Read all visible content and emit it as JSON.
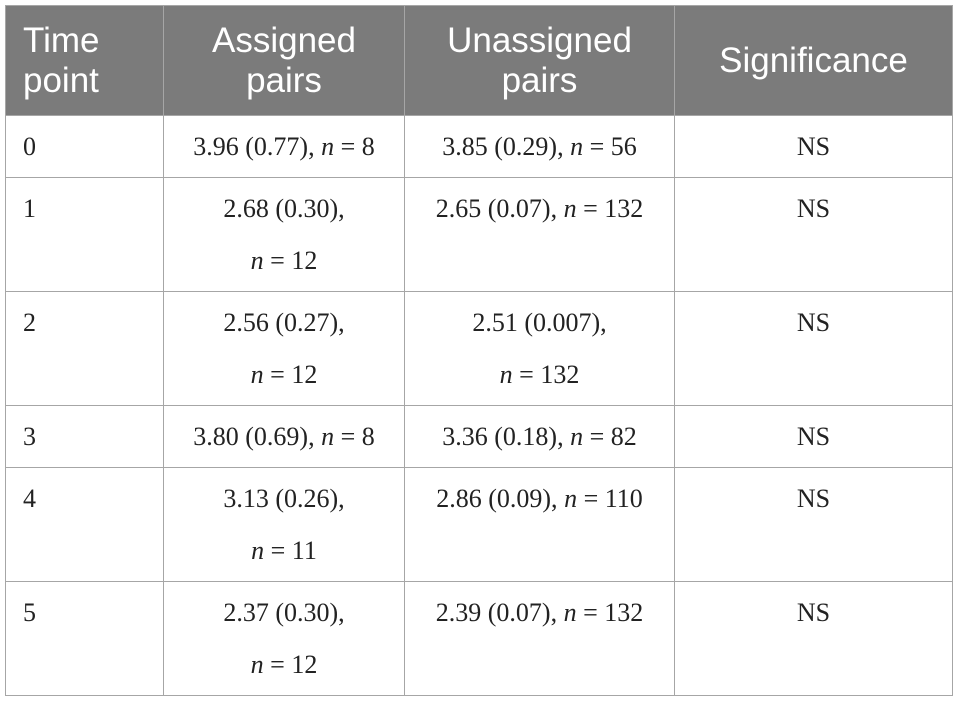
{
  "headers": {
    "time_point": [
      "Time",
      "point"
    ],
    "assigned": [
      "Assigned",
      "pairs"
    ],
    "unassigned": [
      "Unassigned",
      "pairs"
    ],
    "significance": "Significance"
  },
  "rows": [
    {
      "time_point": "0",
      "assigned": {
        "value": "3.96 (0.77),",
        "n_label": "n",
        "n_eq": " = 8"
      },
      "unassigned": {
        "value": "3.85 (0.29),",
        "n_label": "n",
        "n_eq": " = 56"
      },
      "significance": "NS"
    },
    {
      "time_point": "1",
      "assigned": {
        "value": "2.68 (0.30),",
        "n_label": "n",
        "n_eq": " = 12"
      },
      "unassigned": {
        "value": "2.65 (0.07),",
        "n_label": "n",
        "n_eq": " = 132"
      },
      "significance": "NS"
    },
    {
      "time_point": "2",
      "assigned": {
        "value": "2.56 (0.27),",
        "n_label": "n",
        "n_eq": " = 12"
      },
      "unassigned": {
        "value": "2.51 (0.007),",
        "n_label": "n",
        "n_eq": " = 132"
      },
      "significance": "NS"
    },
    {
      "time_point": "3",
      "assigned": {
        "value": "3.80 (0.69),",
        "n_label": "n",
        "n_eq": " = 8"
      },
      "unassigned": {
        "value": "3.36 (0.18),",
        "n_label": "n",
        "n_eq": " = 82"
      },
      "significance": "NS"
    },
    {
      "time_point": "4",
      "assigned": {
        "value": "3.13 (0.26),",
        "n_label": "n",
        "n_eq": " = 11"
      },
      "unassigned": {
        "value": "2.86 (0.09),",
        "n_label": "n",
        "n_eq": " = 110"
      },
      "significance": "NS"
    },
    {
      "time_point": "5",
      "assigned": {
        "value": "2.37 (0.30),",
        "n_label": "n",
        "n_eq": " = 12"
      },
      "unassigned": {
        "value": "2.39 (0.07),",
        "n_label": "n",
        "n_eq": " = 132"
      },
      "significance": "NS"
    }
  ],
  "colors": {
    "header_bg": "#7b7b7b",
    "header_text": "#ffffff",
    "border": "#a6a6a6",
    "body_text": "#222222"
  }
}
